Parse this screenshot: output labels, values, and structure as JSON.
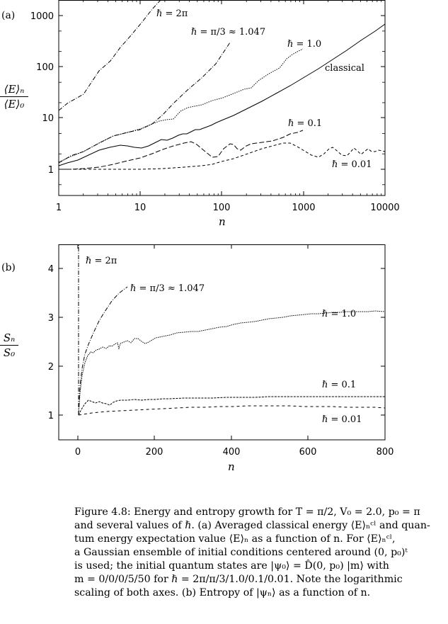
{
  "figure": {
    "panel_a": {
      "label": "(a)",
      "ylabel_num": "⟨E⟩ₙ",
      "ylabel_den": "⟨E⟩₀",
      "xlabel": "n",
      "xticks": [
        "1",
        "10",
        "100",
        "1000",
        "10000"
      ],
      "yticks": [
        "1",
        "10",
        "100",
        "1000"
      ],
      "annotations": {
        "h2pi": "ℏ = 2π",
        "hpi3": "ℏ = π/3 ≈ 1.047",
        "h1": "ℏ = 1.0",
        "classical": "classical",
        "h01": "ℏ = 0.1",
        "h001": "ℏ = 0.01"
      }
    },
    "panel_b": {
      "label": "(b)",
      "ylabel_num": "Sₙ",
      "ylabel_den": "S₀",
      "xlabel": "n",
      "xticks": [
        "0",
        "200",
        "400",
        "600",
        "800"
      ],
      "yticks": [
        "1",
        "2",
        "3",
        "4"
      ],
      "annotations": {
        "h2pi": "ℏ = 2π",
        "hpi3": "ℏ = π/3 ≈ 1.047",
        "h1": "ℏ = 1.0",
        "h01": "ℏ = 0.1",
        "h001": "ℏ = 0.01"
      }
    }
  },
  "caption": {
    "lines": [
      "Figure 4.8: Energy and entropy growth for T = π/2, V₀ = 2.0, p₀ = π",
      "and several values of ℏ. (a) Averaged classical energy ⟨E⟩ₙᶜˡ and quan-",
      "tum energy expectation value ⟨E⟩ₙ as a function of n. For ⟨E⟩ₙᶜˡ,",
      "a Gaussian ensemble of initial conditions centered around (0, p₀)ᵗ",
      "is used; the initial quantum states are |ψ₀⟩ = D̂(0, p₀) |m⟩ with",
      "m = 0/0/0/5/50 for ℏ = 2π/π/3/1.0/0.1/0.01. Note the logarithmic",
      "scaling of both axes. (b) Entropy of |ψₙ⟩ as a function of n."
    ]
  },
  "chart_data": [
    {
      "type": "line",
      "title": "(a) Averaged energy growth",
      "xlabel": "n",
      "ylabel": "⟨E⟩n / ⟨E⟩0",
      "xscale": "log",
      "yscale": "log",
      "xlim": [
        1,
        10000
      ],
      "ylim": [
        0.3,
        2000
      ],
      "grid": false,
      "legend": "inline annotations",
      "series": [
        {
          "name": "ℏ = 2π",
          "style": "dash-dot",
          "x": [
            1,
            2,
            5,
            10,
            20
          ],
          "y": [
            14,
            25,
            150,
            600,
            2000
          ]
        },
        {
          "name": "ℏ = π/3 ≈ 1.047",
          "style": "dash-dot",
          "x": [
            1,
            2,
            5,
            10,
            20,
            50,
            100
          ],
          "y": [
            1.3,
            2.0,
            3.5,
            5.0,
            20,
            100,
            300
          ]
        },
        {
          "name": "ℏ = 1.0",
          "style": "dotted",
          "x": [
            1,
            2,
            5,
            10,
            20,
            50,
            100,
            200,
            500,
            1000
          ],
          "y": [
            1.3,
            2.0,
            3.5,
            5.0,
            8,
            14,
            18,
            40,
            130,
            230
          ]
        },
        {
          "name": "classical",
          "style": "solid",
          "x": [
            1,
            2,
            5,
            10,
            20,
            50,
            100,
            300,
            1000,
            3000,
            10000
          ],
          "y": [
            1.15,
            1.5,
            2.5,
            2.4,
            3.3,
            5.5,
            10,
            25,
            70,
            200,
            650
          ]
        },
        {
          "name": "ℏ = 0.1",
          "style": "dashed",
          "x": [
            1,
            5,
            10,
            40,
            80,
            120,
            170,
            400,
            1000
          ],
          "y": [
            1.0,
            1.1,
            1.5,
            3.4,
            1.7,
            3.3,
            2.6,
            3.5,
            5.5
          ]
        },
        {
          "name": "ℏ = 0.01",
          "style": "short-dashed",
          "x": [
            1,
            20,
            100,
            400,
            800,
            1500,
            3000,
            10000
          ],
          "y": [
            1.0,
            1.05,
            1.5,
            3.3,
            1.5,
            3.0,
            2.2,
            2.2
          ]
        }
      ]
    },
    {
      "type": "line",
      "title": "(b) Entropy growth",
      "xlabel": "n",
      "ylabel": "Sn / S0",
      "xlim": [
        -50,
        800
      ],
      "ylim": [
        0.5,
        4.5
      ],
      "grid": false,
      "legend": "inline annotations",
      "series": [
        {
          "name": "ℏ = 2π",
          "style": "dash-dot",
          "x": [
            0,
            0,
            2
          ],
          "y": [
            1.0,
            4.5,
            4.5
          ]
        },
        {
          "name": "ℏ = π/3 ≈ 1.047",
          "style": "dash-dot",
          "x": [
            0,
            10,
            20,
            40,
            60,
            90,
            130
          ],
          "y": [
            1.0,
            2.1,
            2.5,
            2.9,
            3.15,
            3.4,
            3.6
          ]
        },
        {
          "name": "ℏ = 1.0",
          "style": "dotted",
          "x": [
            0,
            20,
            50,
            100,
            200,
            300,
            400,
            500,
            600,
            700,
            800
          ],
          "y": [
            1.0,
            2.2,
            2.45,
            2.55,
            2.6,
            2.75,
            2.95,
            3.15,
            3.25,
            3.3,
            3.3
          ]
        },
        {
          "name": "ℏ = 0.1",
          "style": "dashed",
          "x": [
            0,
            20,
            50,
            70,
            100,
            200,
            400,
            600,
            800
          ],
          "y": [
            1.0,
            1.3,
            1.3,
            1.2,
            1.3,
            1.33,
            1.36,
            1.38,
            1.38
          ]
        },
        {
          "name": "ℏ = 0.01",
          "style": "short-dashed",
          "x": [
            0,
            100,
            200,
            300,
            400,
            500,
            600,
            700,
            800
          ],
          "y": [
            1.0,
            1.07,
            1.12,
            1.16,
            1.18,
            1.19,
            1.18,
            1.16,
            1.14
          ]
        }
      ]
    }
  ]
}
